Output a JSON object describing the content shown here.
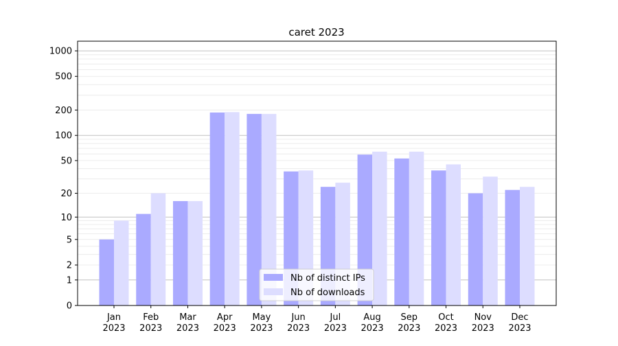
{
  "chart_data": {
    "type": "bar",
    "title": "caret 2023",
    "xlabel": "",
    "ylabel": "",
    "yscale": "log(1+x)",
    "ylim": [
      0,
      1300
    ],
    "yticks": [
      0,
      1,
      2,
      5,
      10,
      20,
      50,
      100,
      200,
      500,
      1000
    ],
    "grid": true,
    "legend_position": "lower center",
    "categories": [
      "Jan\n2023",
      "Feb\n2023",
      "Mar\n2023",
      "Apr\n2023",
      "May\n2023",
      "Jun\n2023",
      "Jul\n2023",
      "Aug\n2023",
      "Sep\n2023",
      "Oct\n2023",
      "Nov\n2023",
      "Dec\n2023"
    ],
    "series": [
      {
        "name": "Nb of distinct IPs",
        "color": "#aaaaff",
        "values": [
          5,
          11,
          16,
          187,
          180,
          37,
          24,
          59,
          53,
          38,
          20,
          22
        ]
      },
      {
        "name": "Nb of downloads",
        "color": "#ddddff",
        "values": [
          9,
          20,
          16,
          189,
          180,
          38,
          27,
          64,
          64,
          45,
          32,
          24
        ]
      }
    ]
  }
}
